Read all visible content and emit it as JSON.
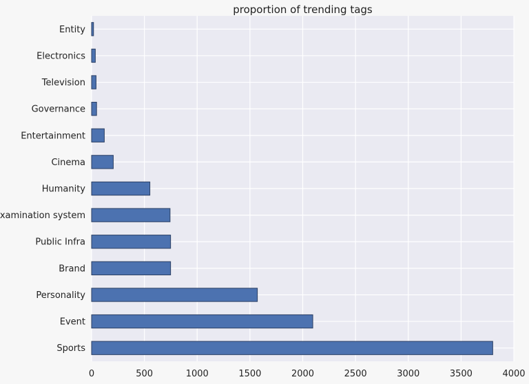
{
  "chart_data": {
    "type": "bar",
    "orientation": "horizontal",
    "title": "proportion of trending tags",
    "xlabel": "",
    "ylabel": "",
    "categories": [
      "Sports",
      "Event",
      "Personality",
      "Brand",
      "Public Infra",
      "Examination system",
      "Humanity",
      "Cinema",
      "Entertainment",
      "Governance",
      "Television",
      "Electronics",
      "Entity"
    ],
    "values": [
      3800,
      2095,
      1570,
      748,
      748,
      743,
      552,
      205,
      120,
      47,
      42,
      35,
      18
    ],
    "xlim": [
      0,
      4000
    ],
    "xticks": [
      "0",
      "500",
      "1000",
      "1500",
      "2000",
      "2500",
      "3000",
      "3500",
      "4000"
    ],
    "grid": true,
    "legend": "none",
    "colors": {
      "bar": "#4c72b0",
      "bar_edge": "#2b3f63",
      "plot_bg": "#eaeaf2",
      "grid": "#ffffff",
      "page_bg": "#f7f7f7"
    }
  }
}
